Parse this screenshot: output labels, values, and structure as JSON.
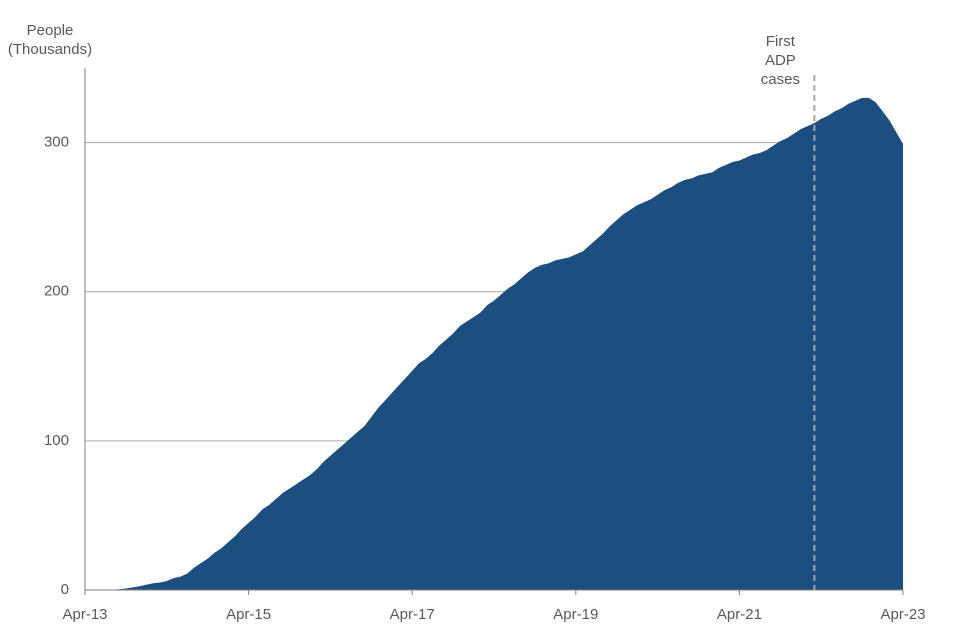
{
  "chart_data": {
    "type": "area",
    "y_label": [
      "People",
      "(Thousands)"
    ],
    "categories": [
      "Apr-13",
      null,
      null,
      null,
      null,
      null,
      null,
      null,
      null,
      null,
      null,
      null,
      null,
      null,
      null,
      null,
      null,
      null,
      null,
      null,
      null,
      null,
      null,
      null,
      "Apr-15",
      null,
      null,
      null,
      null,
      null,
      null,
      null,
      null,
      null,
      null,
      null,
      null,
      null,
      null,
      null,
      null,
      null,
      null,
      null,
      null,
      null,
      null,
      null,
      "Apr-17",
      null,
      null,
      null,
      null,
      null,
      null,
      null,
      null,
      null,
      null,
      null,
      null,
      null,
      null,
      null,
      null,
      null,
      null,
      null,
      null,
      null,
      null,
      null,
      "Apr-19",
      null,
      null,
      null,
      null,
      null,
      null,
      null,
      null,
      null,
      null,
      null,
      null,
      null,
      null,
      null,
      null,
      null,
      null,
      null,
      null,
      null,
      null,
      null,
      "Apr-21",
      null,
      null,
      null,
      null,
      null,
      null,
      null,
      null,
      null,
      null,
      null,
      null,
      null,
      null,
      null,
      null,
      null,
      null,
      null,
      null,
      null,
      null,
      null,
      "Apr-23"
    ],
    "values": [
      0,
      0,
      0,
      0,
      0.2,
      0.5,
      1,
      1.8,
      2.5,
      3.5,
      4.5,
      5,
      6,
      8,
      9,
      11,
      15,
      18,
      21,
      25,
      28,
      32,
      36,
      41,
      45,
      49,
      54,
      57,
      61,
      65,
      68,
      71,
      74,
      77,
      81,
      86,
      90,
      94,
      98,
      102,
      106,
      110,
      116,
      122,
      127,
      132,
      137,
      142,
      147,
      152,
      155,
      159,
      164,
      168,
      172,
      177,
      180,
      183,
      186,
      191,
      194,
      198,
      202,
      205,
      209,
      213,
      216,
      218,
      219,
      221,
      222,
      223,
      225,
      227,
      231,
      235,
      239,
      244,
      248,
      252,
      255,
      258,
      260,
      262,
      265,
      268,
      270,
      273,
      275,
      276,
      278,
      279,
      280,
      283,
      285,
      287,
      288,
      290,
      292,
      293,
      295,
      298,
      301,
      303,
      306,
      309,
      311,
      313,
      316,
      318,
      321,
      323,
      326,
      328,
      330,
      330,
      327,
      321,
      315,
      307,
      299
    ],
    "color": "#1c4e80",
    "ylim": [
      0,
      350
    ],
    "yticks": [
      0,
      100,
      200,
      300
    ],
    "grid": true,
    "annotation": {
      "lines": [
        "First",
        "ADP",
        "cases"
      ],
      "index": 107
    }
  }
}
